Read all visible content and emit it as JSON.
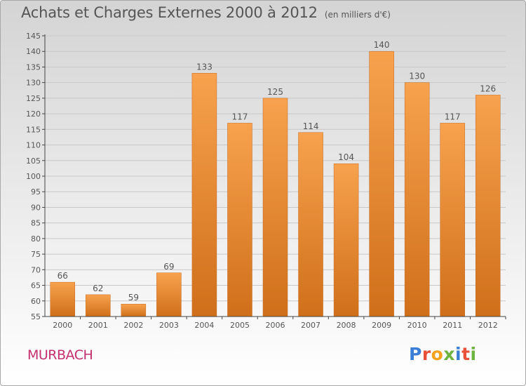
{
  "header": {
    "title": "Achats et Charges Externes 2000 à 2012",
    "unit": "(en milliers d'€)"
  },
  "footer": {
    "commune": "MURBACH",
    "logo_text": "Proxiti",
    "logo_colors": [
      "#3a7fd5",
      "#e9503a",
      "#f4a21c",
      "#6db33f",
      "#3a7fd5",
      "#e9503a",
      "#6db33f"
    ]
  },
  "colors": {
    "bar_light": "#f7a24e",
    "bar_dark": "#d06f1a",
    "axis": "#444444",
    "grid": "#c8c8c8",
    "text": "#555555",
    "accent": "#c4306e"
  },
  "chart_data": {
    "type": "bar",
    "title": "Achats et Charges Externes 2000 à 2012",
    "subtitle": "(en milliers d'€)",
    "categories": [
      "2000",
      "2001",
      "2002",
      "2003",
      "2004",
      "2005",
      "2006",
      "2007",
      "2008",
      "2009",
      "2010",
      "2011",
      "2012"
    ],
    "values": [
      66,
      62,
      59,
      69,
      133,
      117,
      125,
      114,
      104,
      140,
      130,
      117,
      126
    ],
    "ylim": [
      55,
      145
    ],
    "yticks": [
      55,
      60,
      65,
      70,
      75,
      80,
      85,
      90,
      95,
      100,
      105,
      110,
      115,
      120,
      125,
      130,
      135,
      140,
      145
    ],
    "xlabel": "",
    "ylabel": "",
    "grid": true,
    "data_labels": true
  }
}
